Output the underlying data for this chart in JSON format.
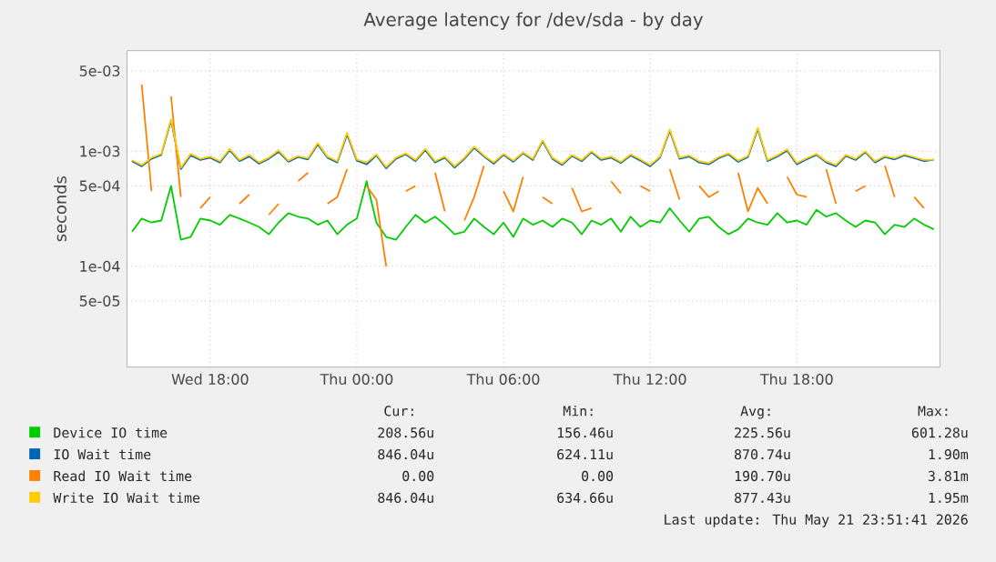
{
  "chart_data": {
    "type": "line",
    "title": "Average latency for /dev/sda - by day",
    "ylabel": "seconds",
    "log": "y",
    "grid": true,
    "legend": "bottom",
    "xlim": [
      "2026-05-20T14:36",
      "2026-05-21T23:51"
    ],
    "xticks": [
      {
        "value": "2026-05-20T18:00",
        "label": "Wed 18:00"
      },
      {
        "value": "2026-05-21T00:00",
        "label": "Thu 00:00"
      },
      {
        "value": "2026-05-21T06:00",
        "label": "Thu 06:00"
      },
      {
        "value": "2026-05-21T12:00",
        "label": "Thu 12:00"
      },
      {
        "value": "2026-05-21T18:00",
        "label": "Thu 18:00"
      }
    ],
    "ylim": [
      1.33e-05,
      0.0075
    ],
    "yticks": [
      {
        "value": 5e-05,
        "label": "5e-05"
      },
      {
        "value": 0.0001,
        "label": "1e-04"
      },
      {
        "value": 0.0005,
        "label": "5e-04"
      },
      {
        "value": 0.001,
        "label": "1e-03"
      },
      {
        "value": 0.005,
        "label": "5e-03"
      }
    ],
    "x": [
      "2026-05-20T14:48",
      "2026-05-20T15:12",
      "2026-05-20T15:36",
      "2026-05-20T16:00",
      "2026-05-20T16:24",
      "2026-05-20T16:48",
      "2026-05-20T17:12",
      "2026-05-20T17:36",
      "2026-05-20T18:00",
      "2026-05-20T18:24",
      "2026-05-20T18:48",
      "2026-05-20T19:12",
      "2026-05-20T19:36",
      "2026-05-20T20:00",
      "2026-05-20T20:24",
      "2026-05-20T20:48",
      "2026-05-20T21:12",
      "2026-05-20T21:36",
      "2026-05-20T22:00",
      "2026-05-20T22:24",
      "2026-05-20T22:48",
      "2026-05-20T23:12",
      "2026-05-20T23:36",
      "2026-05-21T00:00",
      "2026-05-21T00:24",
      "2026-05-21T00:48",
      "2026-05-21T01:12",
      "2026-05-21T01:36",
      "2026-05-21T02:00",
      "2026-05-21T02:24",
      "2026-05-21T02:48",
      "2026-05-21T03:12",
      "2026-05-21T03:36",
      "2026-05-21T04:00",
      "2026-05-21T04:24",
      "2026-05-21T04:48",
      "2026-05-21T05:12",
      "2026-05-21T05:36",
      "2026-05-21T06:00",
      "2026-05-21T06:24",
      "2026-05-21T06:48",
      "2026-05-21T07:12",
      "2026-05-21T07:36",
      "2026-05-21T08:00",
      "2026-05-21T08:24",
      "2026-05-21T08:48",
      "2026-05-21T09:12",
      "2026-05-21T09:36",
      "2026-05-21T10:00",
      "2026-05-21T10:24",
      "2026-05-21T10:48",
      "2026-05-21T11:12",
      "2026-05-21T11:36",
      "2026-05-21T12:00",
      "2026-05-21T12:24",
      "2026-05-21T12:48",
      "2026-05-21T13:12",
      "2026-05-21T13:36",
      "2026-05-21T14:00",
      "2026-05-21T14:24",
      "2026-05-21T14:48",
      "2026-05-21T15:12",
      "2026-05-21T15:36",
      "2026-05-21T16:00",
      "2026-05-21T16:24",
      "2026-05-21T16:48",
      "2026-05-21T17:12",
      "2026-05-21T17:36",
      "2026-05-21T18:00",
      "2026-05-21T18:24",
      "2026-05-21T18:48",
      "2026-05-21T19:12",
      "2026-05-21T19:36",
      "2026-05-21T20:00",
      "2026-05-21T20:24",
      "2026-05-21T20:48",
      "2026-05-21T21:12",
      "2026-05-21T21:36",
      "2026-05-21T22:00",
      "2026-05-21T22:24",
      "2026-05-21T22:48",
      "2026-05-21T23:12",
      "2026-05-21T23:36"
    ],
    "series": [
      {
        "name": "Device IO time",
        "color": "#00cc00",
        "values": [
          0.0002,
          0.00026,
          0.00024,
          0.00025,
          0.0005,
          0.00017,
          0.00018,
          0.00026,
          0.00025,
          0.00023,
          0.00028,
          0.00026,
          0.00024,
          0.00022,
          0.00019,
          0.00024,
          0.00029,
          0.00027,
          0.00026,
          0.00023,
          0.00025,
          0.00019,
          0.00023,
          0.00026,
          0.00055,
          0.00024,
          0.00018,
          0.00017,
          0.00022,
          0.00028,
          0.00024,
          0.00027,
          0.00023,
          0.00019,
          0.0002,
          0.00026,
          0.00022,
          0.00019,
          0.00024,
          0.00018,
          0.00026,
          0.00023,
          0.00025,
          0.00022,
          0.00026,
          0.00024,
          0.00019,
          0.00025,
          0.00023,
          0.00026,
          0.0002,
          0.00027,
          0.00022,
          0.00025,
          0.00024,
          0.00032,
          0.00025,
          0.0002,
          0.00026,
          0.00027,
          0.00022,
          0.00019,
          0.00021,
          0.00026,
          0.00024,
          0.00023,
          0.00029,
          0.00024,
          0.00025,
          0.00023,
          0.00031,
          0.00027,
          0.00029,
          0.00025,
          0.00022,
          0.00025,
          0.00024,
          0.00019,
          0.00023,
          0.00022,
          0.00026,
          0.00023,
          0.00021
        ]
      },
      {
        "name": "IO Wait time",
        "color": "#0066b3",
        "values": [
          0.00082,
          0.00074,
          0.00086,
          0.00093,
          0.00185,
          0.0007,
          0.00092,
          0.00084,
          0.00088,
          0.0008,
          0.00102,
          0.00082,
          0.0009,
          0.00078,
          0.00086,
          0.00099,
          0.00081,
          0.00089,
          0.00085,
          0.00115,
          0.00088,
          0.0008,
          0.0014,
          0.00083,
          0.00077,
          0.00092,
          0.00071,
          0.00086,
          0.00094,
          0.00082,
          0.00102,
          0.0008,
          0.00088,
          0.00072,
          0.00086,
          0.00107,
          0.0009,
          0.00078,
          0.00093,
          0.00081,
          0.00096,
          0.00084,
          0.00122,
          0.00086,
          0.00076,
          0.00091,
          0.00082,
          0.00098,
          0.00084,
          0.00088,
          0.00079,
          0.00092,
          0.00083,
          0.00074,
          0.00088,
          0.00151,
          0.00086,
          0.0009,
          0.0008,
          0.00077,
          0.00087,
          0.00094,
          0.00081,
          0.00089,
          0.00156,
          0.00082,
          0.0009,
          0.00101,
          0.00077,
          0.00085,
          0.00093,
          0.0008,
          0.00074,
          0.00091,
          0.00084,
          0.00098,
          0.0008,
          0.00089,
          0.00085,
          0.00092,
          0.00087,
          0.00082,
          0.000846
        ]
      },
      {
        "name": "Read IO Wait time",
        "color": "#ff8000",
        "values": [
          null,
          0.0038,
          0.00045,
          null,
          0.003,
          0.0004,
          null,
          0.00032,
          0.0004,
          null,
          null,
          0.00035,
          0.00042,
          null,
          0.00028,
          0.00035,
          null,
          0.00055,
          0.00065,
          null,
          0.00035,
          0.0004,
          0.0007,
          null,
          0.0005,
          0.00038,
          0.0001,
          null,
          0.00045,
          0.0005,
          null,
          0.00065,
          0.0003,
          null,
          0.00025,
          0.0004,
          0.00075,
          null,
          0.00045,
          0.0003,
          0.0006,
          null,
          0.0004,
          0.00035,
          null,
          0.00048,
          0.0003,
          0.00032,
          null,
          0.00055,
          0.00043,
          null,
          0.0005,
          0.00045,
          null,
          0.0007,
          0.00038,
          null,
          0.0005,
          0.0004,
          0.00045,
          null,
          0.00065,
          0.0003,
          0.00048,
          0.00035,
          null,
          0.0006,
          0.00042,
          0.0004,
          null,
          0.0007,
          0.00035,
          null,
          0.00045,
          0.0005,
          null,
          0.00075,
          0.0004,
          null,
          0.0004,
          0.00032,
          null
        ]
      },
      {
        "name": "Write IO Wait time",
        "color": "#ffcc00",
        "values": [
          0.00084,
          0.00076,
          0.00088,
          0.00095,
          0.0019,
          0.00072,
          0.00095,
          0.00086,
          0.0009,
          0.00082,
          0.00105,
          0.00084,
          0.00093,
          0.0008,
          0.00088,
          0.00102,
          0.00083,
          0.00091,
          0.00087,
          0.00118,
          0.0009,
          0.00082,
          0.00145,
          0.00085,
          0.0008,
          0.00094,
          0.00073,
          0.00088,
          0.00096,
          0.00084,
          0.00105,
          0.00082,
          0.0009,
          0.00074,
          0.00088,
          0.0011,
          0.00092,
          0.0008,
          0.00095,
          0.00083,
          0.00098,
          0.00086,
          0.00125,
          0.00088,
          0.00078,
          0.00093,
          0.00084,
          0.001,
          0.00086,
          0.0009,
          0.00081,
          0.00094,
          0.00085,
          0.00076,
          0.0009,
          0.00155,
          0.00088,
          0.00092,
          0.00082,
          0.00079,
          0.00089,
          0.00096,
          0.00083,
          0.00091,
          0.0016,
          0.00084,
          0.00092,
          0.00104,
          0.00079,
          0.00087,
          0.00095,
          0.00082,
          0.00076,
          0.00093,
          0.00086,
          0.001,
          0.00082,
          0.00091,
          0.00087,
          0.00094,
          0.00089,
          0.00084,
          0.000846
        ]
      }
    ],
    "annotations": [
      "Cur:",
      "Min:",
      "Avg:",
      "Max:",
      "208.56u",
      "156.46u",
      "225.56u",
      "601.28u",
      "846.04u",
      "624.11u",
      "870.74u",
      "1.90m",
      "0.00",
      "0.00",
      "190.70u",
      "3.81m",
      "846.04u",
      "634.66u",
      "877.43u",
      "1.95m",
      "Last update: Thu May 21 23:51:41 2026"
    ]
  }
}
